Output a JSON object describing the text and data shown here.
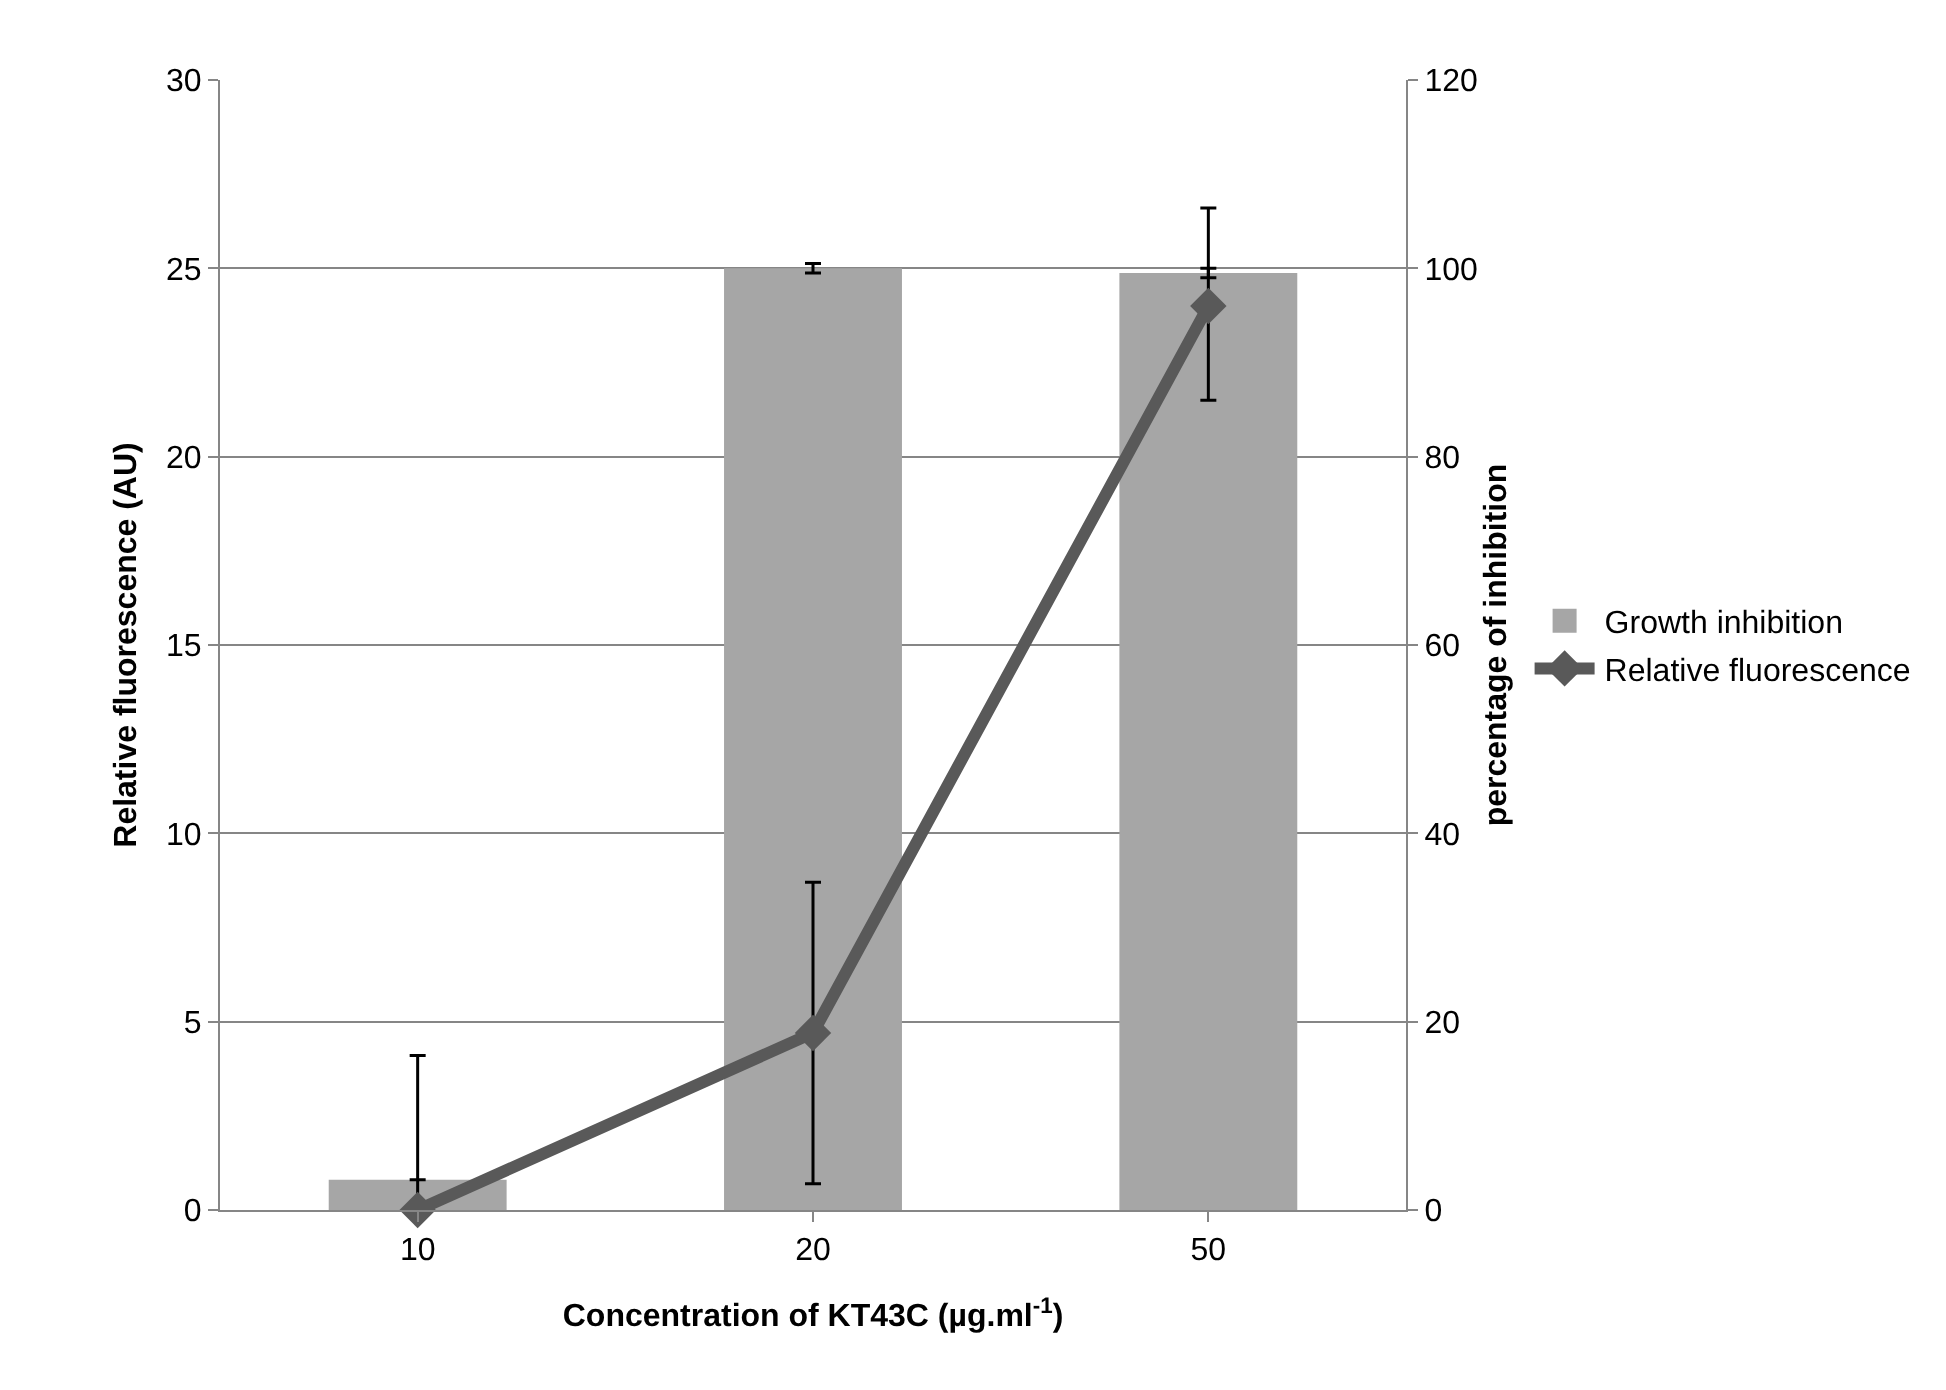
{
  "chart_data": {
    "type": "bar",
    "categories": [
      "10",
      "20",
      "50"
    ],
    "xlabel": "Concentration of KT43C (µg.ml$^{-1}$)",
    "ylabel": "Relative fluorescence (AU)",
    "y2label": "percentage of inhibition",
    "series": [
      {
        "name": "Growth inhibition",
        "axis": "y2",
        "color": "#a6a6a6",
        "values": [
          3.2,
          100,
          99.5
        ],
        "errors": [
          null,
          0.5,
          0.5
        ]
      },
      {
        "name": "Relative fluorescence",
        "type": "line",
        "color": "#595959",
        "marker": "diamond",
        "line_style": "solid",
        "values": [
          0,
          4.7,
          24
        ],
        "errors": [
          [
            0,
            4.1
          ],
          4,
          [
            21.5,
            26.6
          ]
        ]
      }
    ],
    "ylim": [
      0,
      30
    ],
    "yticks": [
      0,
      5,
      10,
      15,
      20,
      25,
      30
    ],
    "y2lim": [
      0,
      120
    ],
    "y2ticks": [
      0,
      20,
      40,
      60,
      80,
      100,
      120
    ],
    "grid": "y",
    "legend": "right"
  }
}
